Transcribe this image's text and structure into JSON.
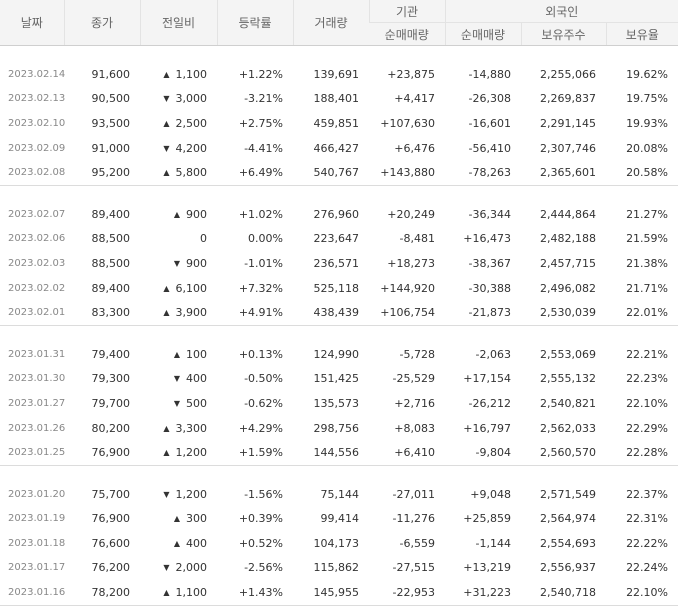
{
  "colors": {
    "up": "#e0201f",
    "down": "#1a63d3",
    "flat": "#333333",
    "date": "#888888",
    "header_bg": "#f4f4f4"
  },
  "header": {
    "date": "날짜",
    "close": "종가",
    "change": "전일비",
    "rate": "등락률",
    "volume": "거래량",
    "inst": "기관",
    "foreign": "외국인",
    "inst_net": "순매매량",
    "foreign_net": "순매매량",
    "foreign_hold": "보유주수",
    "foreign_ratio": "보유율"
  },
  "groups": [
    [
      {
        "date": "2023.02.14",
        "close": "91,600",
        "arrow": "▲",
        "dir": "up",
        "change": "1,100",
        "rate": "+1.22%",
        "volume": "139,691",
        "inst": "+23,875",
        "foreign": "-14,880",
        "hold": "2,255,066",
        "ratio": "19.62%"
      },
      {
        "date": "2023.02.13",
        "close": "90,500",
        "arrow": "▼",
        "dir": "down",
        "change": "3,000",
        "rate": "-3.21%",
        "volume": "188,401",
        "inst": "+4,417",
        "foreign": "-26,308",
        "hold": "2,269,837",
        "ratio": "19.75%"
      },
      {
        "date": "2023.02.10",
        "close": "93,500",
        "arrow": "▲",
        "dir": "up",
        "change": "2,500",
        "rate": "+2.75%",
        "volume": "459,851",
        "inst": "+107,630",
        "foreign": "-16,601",
        "hold": "2,291,145",
        "ratio": "19.93%"
      },
      {
        "date": "2023.02.09",
        "close": "91,000",
        "arrow": "▼",
        "dir": "down",
        "change": "4,200",
        "rate": "-4.41%",
        "volume": "466,427",
        "inst": "+6,476",
        "foreign": "-56,410",
        "hold": "2,307,746",
        "ratio": "20.08%"
      },
      {
        "date": "2023.02.08",
        "close": "95,200",
        "arrow": "▲",
        "dir": "up",
        "change": "5,800",
        "rate": "+6.49%",
        "volume": "540,767",
        "inst": "+143,880",
        "foreign": "-78,263",
        "hold": "2,365,601",
        "ratio": "20.58%"
      }
    ],
    [
      {
        "date": "2023.02.07",
        "close": "89,400",
        "arrow": "▲",
        "dir": "up",
        "change": "900",
        "rate": "+1.02%",
        "volume": "276,960",
        "inst": "+20,249",
        "foreign": "-36,344",
        "hold": "2,444,864",
        "ratio": "21.27%"
      },
      {
        "date": "2023.02.06",
        "close": "88,500",
        "arrow": "",
        "dir": "flat",
        "change": "0",
        "rate": "0.00%",
        "volume": "223,647",
        "inst": "-8,481",
        "foreign": "+16,473",
        "hold": "2,482,188",
        "ratio": "21.59%"
      },
      {
        "date": "2023.02.03",
        "close": "88,500",
        "arrow": "▼",
        "dir": "down",
        "change": "900",
        "rate": "-1.01%",
        "volume": "236,571",
        "inst": "+18,273",
        "foreign": "-38,367",
        "hold": "2,457,715",
        "ratio": "21.38%"
      },
      {
        "date": "2023.02.02",
        "close": "89,400",
        "arrow": "▲",
        "dir": "up",
        "change": "6,100",
        "rate": "+7.32%",
        "volume": "525,118",
        "inst": "+144,920",
        "foreign": "-30,388",
        "hold": "2,496,082",
        "ratio": "21.71%"
      },
      {
        "date": "2023.02.01",
        "close": "83,300",
        "arrow": "▲",
        "dir": "up",
        "change": "3,900",
        "rate": "+4.91%",
        "volume": "438,439",
        "inst": "+106,754",
        "foreign": "-21,873",
        "hold": "2,530,039",
        "ratio": "22.01%"
      }
    ],
    [
      {
        "date": "2023.01.31",
        "close": "79,400",
        "arrow": "▲",
        "dir": "up",
        "change": "100",
        "rate": "+0.13%",
        "volume": "124,990",
        "inst": "-5,728",
        "foreign": "-2,063",
        "hold": "2,553,069",
        "ratio": "22.21%"
      },
      {
        "date": "2023.01.30",
        "close": "79,300",
        "arrow": "▼",
        "dir": "down",
        "change": "400",
        "rate": "-0.50%",
        "volume": "151,425",
        "inst": "-25,529",
        "foreign": "+17,154",
        "hold": "2,555,132",
        "ratio": "22.23%"
      },
      {
        "date": "2023.01.27",
        "close": "79,700",
        "arrow": "▼",
        "dir": "down",
        "change": "500",
        "rate": "-0.62%",
        "volume": "135,573",
        "inst": "+2,716",
        "foreign": "-26,212",
        "hold": "2,540,821",
        "ratio": "22.10%"
      },
      {
        "date": "2023.01.26",
        "close": "80,200",
        "arrow": "▲",
        "dir": "up",
        "change": "3,300",
        "rate": "+4.29%",
        "volume": "298,756",
        "inst": "+8,083",
        "foreign": "+16,797",
        "hold": "2,562,033",
        "ratio": "22.29%"
      },
      {
        "date": "2023.01.25",
        "close": "76,900",
        "arrow": "▲",
        "dir": "up",
        "change": "1,200",
        "rate": "+1.59%",
        "volume": "144,556",
        "inst": "+6,410",
        "foreign": "-9,804",
        "hold": "2,560,570",
        "ratio": "22.28%"
      }
    ],
    [
      {
        "date": "2023.01.20",
        "close": "75,700",
        "arrow": "▼",
        "dir": "down",
        "change": "1,200",
        "rate": "-1.56%",
        "volume": "75,144",
        "inst": "-27,011",
        "foreign": "+9,048",
        "hold": "2,571,549",
        "ratio": "22.37%"
      },
      {
        "date": "2023.01.19",
        "close": "76,900",
        "arrow": "▲",
        "dir": "up",
        "change": "300",
        "rate": "+0.39%",
        "volume": "99,414",
        "inst": "-11,276",
        "foreign": "+25,859",
        "hold": "2,564,974",
        "ratio": "22.31%"
      },
      {
        "date": "2023.01.18",
        "close": "76,600",
        "arrow": "▲",
        "dir": "up",
        "change": "400",
        "rate": "+0.52%",
        "volume": "104,173",
        "inst": "-6,559",
        "foreign": "-1,144",
        "hold": "2,554,693",
        "ratio": "22.22%"
      },
      {
        "date": "2023.01.17",
        "close": "76,200",
        "arrow": "▼",
        "dir": "down",
        "change": "2,000",
        "rate": "-2.56%",
        "volume": "115,862",
        "inst": "-27,515",
        "foreign": "+13,219",
        "hold": "2,556,937",
        "ratio": "22.24%"
      },
      {
        "date": "2023.01.16",
        "close": "78,200",
        "arrow": "▲",
        "dir": "up",
        "change": "1,100",
        "rate": "+1.43%",
        "volume": "145,955",
        "inst": "-22,953",
        "foreign": "+31,223",
        "hold": "2,540,718",
        "ratio": "22.10%"
      }
    ]
  ]
}
